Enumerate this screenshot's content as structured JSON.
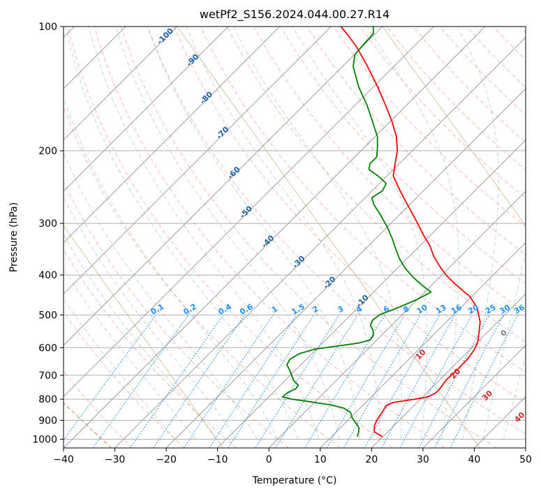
{
  "chart_data": {
    "type": "skew-t",
    "title": "wetPf2_S156.2024.044.00.27.R14",
    "xlabel": "Temperature (°C)",
    "ylabel": "Pressure (hPa)",
    "xlim": [
      -40,
      50
    ],
    "ylim": [
      1050,
      100
    ],
    "yscale": "log",
    "x_ticks": [
      "−40",
      "−30",
      "−20",
      "−10",
      "0",
      "10",
      "20",
      "30",
      "40",
      "50"
    ],
    "x_tick_values": [
      -40,
      -30,
      -20,
      -10,
      0,
      10,
      20,
      30,
      40,
      50
    ],
    "y_ticks": [
      "100",
      "200",
      "300",
      "400",
      "500",
      "600",
      "700",
      "800",
      "900",
      "1000"
    ],
    "y_tick_values": [
      100,
      200,
      300,
      400,
      500,
      600,
      700,
      800,
      900,
      1000
    ],
    "isotherm_labels": [
      "-100",
      "-90",
      "-80",
      "-70",
      "-60",
      "-50",
      "-40",
      "-30",
      "-20",
      "-10"
    ],
    "mixing_ratio_labels": [
      "0.1",
      "0.2",
      "0.4",
      "0.6",
      "1",
      "1.5",
      "2",
      "3",
      "4",
      "6",
      "8",
      "10",
      "13",
      "16",
      "20",
      "25",
      "30",
      "36"
    ],
    "mixing_ratio_values": [
      0.1,
      0.2,
      0.4,
      0.6,
      1,
      1.5,
      2,
      3,
      4,
      6,
      8,
      10,
      13,
      16,
      20,
      25,
      30,
      36
    ],
    "moist_adiabat_labels": [
      "0",
      "10",
      "20",
      "30",
      "40"
    ],
    "series": [
      {
        "color": "#ff0000",
        "points": [
          [
            986,
            19.9
          ],
          [
            960,
            17.4
          ],
          [
            930,
            16.3
          ],
          [
            900,
            15.6
          ],
          [
            860,
            15.1
          ],
          [
            830,
            14.6
          ],
          [
            815,
            15.3
          ],
          [
            800,
            18.9
          ],
          [
            790,
            21.0
          ],
          [
            775,
            21.7
          ],
          [
            760,
            21.8
          ],
          [
            720,
            21.3
          ],
          [
            680,
            21.4
          ],
          [
            640,
            21.4
          ],
          [
            610,
            20.9
          ],
          [
            585,
            20.2
          ],
          [
            560,
            18.9
          ],
          [
            520,
            16.6
          ],
          [
            480,
            13.2
          ],
          [
            450,
            9.5
          ],
          [
            440,
            7.7
          ],
          [
            420,
            4.2
          ],
          [
            400,
            0.8
          ],
          [
            380,
            -2.3
          ],
          [
            360,
            -5.3
          ],
          [
            340,
            -8.0
          ],
          [
            320,
            -11.4
          ],
          [
            300,
            -14.8
          ],
          [
            280,
            -18.5
          ],
          [
            260,
            -22.5
          ],
          [
            245,
            -25.6
          ],
          [
            230,
            -28.8
          ],
          [
            215,
            -30.8
          ],
          [
            200,
            -32.9
          ],
          [
            185,
            -35.8
          ],
          [
            170,
            -39.6
          ],
          [
            155,
            -44.1
          ],
          [
            140,
            -49.2
          ],
          [
            125,
            -55.1
          ],
          [
            112,
            -61.1
          ],
          [
            105,
            -65.0
          ],
          [
            100,
            -68.1
          ]
        ]
      },
      {
        "color": "#008000",
        "points": [
          [
            986,
            15.0
          ],
          [
            965,
            14.5
          ],
          [
            940,
            13.7
          ],
          [
            925,
            12.8
          ],
          [
            905,
            11.5
          ],
          [
            885,
            10.2
          ],
          [
            860,
            8.9
          ],
          [
            840,
            6.7
          ],
          [
            825,
            3.5
          ],
          [
            810,
            -1.5
          ],
          [
            800,
            -5.0
          ],
          [
            790,
            -7.3
          ],
          [
            770,
            -7.1
          ],
          [
            755,
            -6.3
          ],
          [
            740,
            -6.5
          ],
          [
            720,
            -8.4
          ],
          [
            690,
            -10.4
          ],
          [
            660,
            -12.7
          ],
          [
            640,
            -13.2
          ],
          [
            620,
            -12.4
          ],
          [
            605,
            -10.3
          ],
          [
            595,
            -6.7
          ],
          [
            585,
            -3.0
          ],
          [
            575,
            -1.3
          ],
          [
            560,
            -1.6
          ],
          [
            545,
            -2.6
          ],
          [
            530,
            -4.1
          ],
          [
            515,
            -4.7
          ],
          [
            500,
            -4.4
          ],
          [
            480,
            -2.2
          ],
          [
            460,
            -0.2
          ],
          [
            440,
            1.2
          ],
          [
            425,
            -1.6
          ],
          [
            405,
            -5.2
          ],
          [
            385,
            -8.5
          ],
          [
            365,
            -11.5
          ],
          [
            345,
            -14.2
          ],
          [
            325,
            -17.0
          ],
          [
            305,
            -20.2
          ],
          [
            285,
            -23.9
          ],
          [
            270,
            -27.0
          ],
          [
            260,
            -28.7
          ],
          [
            250,
            -28.0
          ],
          [
            240,
            -28.7
          ],
          [
            230,
            -31.8
          ],
          [
            222,
            -34.8
          ],
          [
            215,
            -35.7
          ],
          [
            207,
            -35.7
          ],
          [
            197,
            -37.3
          ],
          [
            185,
            -39.5
          ],
          [
            170,
            -43.4
          ],
          [
            155,
            -47.7
          ],
          [
            140,
            -52.9
          ],
          [
            125,
            -57.9
          ],
          [
            117,
            -59.9
          ],
          [
            110,
            -60.2
          ],
          [
            104,
            -60.4
          ],
          [
            100,
            -61.8
          ]
        ]
      }
    ],
    "grid": true
  }
}
